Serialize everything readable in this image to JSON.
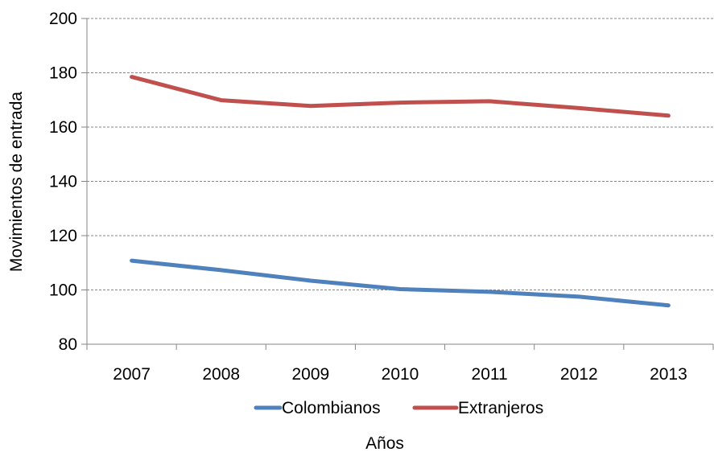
{
  "chart_data": {
    "type": "line",
    "title": "",
    "xlabel": "Años",
    "ylabel": "Movimientos de entrada",
    "categories": [
      "2007",
      "2008",
      "2009",
      "2010",
      "2011",
      "2012",
      "2013"
    ],
    "ylim": [
      80,
      200
    ],
    "yticks": [
      80,
      100,
      120,
      140,
      160,
      180,
      200
    ],
    "grid": true,
    "legend_position": "bottom",
    "series": [
      {
        "name": "Colombianos",
        "color": "#4F81BD",
        "values": [
          110.8,
          107.3,
          103.4,
          100.3,
          99.3,
          97.5,
          94.3
        ]
      },
      {
        "name": "Extranjeros",
        "color": "#C0504D",
        "values": [
          178.5,
          169.9,
          167.8,
          169.0,
          169.5,
          167.0,
          164.2
        ]
      }
    ]
  }
}
